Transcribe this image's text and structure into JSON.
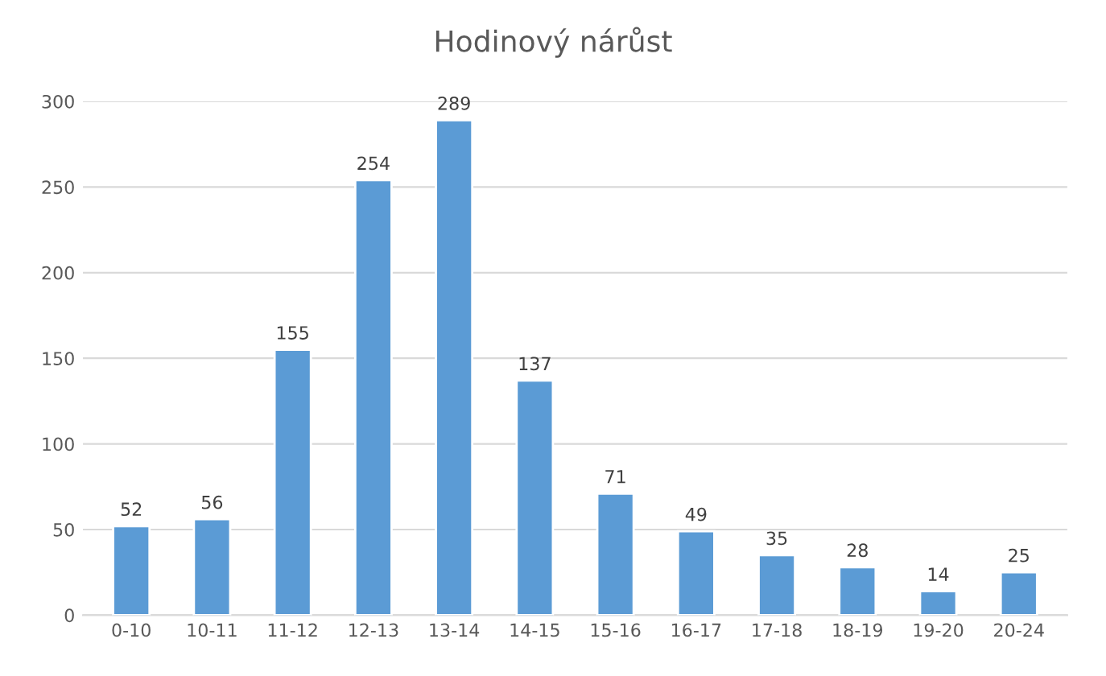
{
  "chart_data": {
    "type": "bar",
    "title": "Hodinový nárůst",
    "categories": [
      "0-10",
      "10-11",
      "11-12",
      "12-13",
      "13-14",
      "14-15",
      "15-16",
      "16-17",
      "17-18",
      "18-19",
      "19-20",
      "20-24"
    ],
    "values": [
      52,
      56,
      155,
      254,
      289,
      137,
      71,
      49,
      35,
      28,
      14,
      25
    ],
    "color": "#5b9bd5",
    "data_labels": true,
    "ylim": [
      0,
      300
    ],
    "yticks": [
      0,
      50,
      100,
      150,
      200,
      250,
      300
    ],
    "grid": "y"
  }
}
